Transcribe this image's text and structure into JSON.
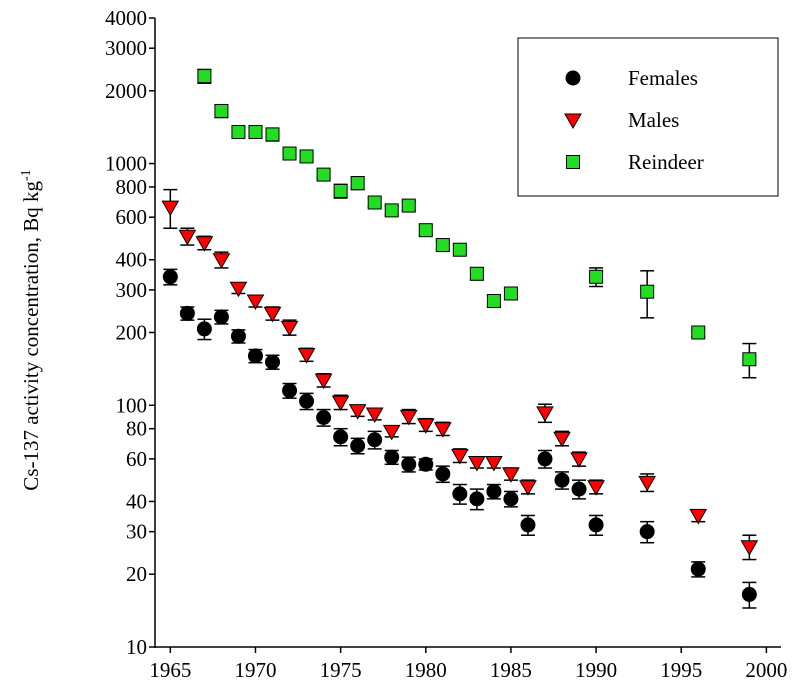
{
  "chart_data": {
    "type": "scatter",
    "y_label": "Cs-137 activity concentration, Bq kg",
    "y_label_sup": "-1",
    "xlim": [
      1964.1,
      2000.8
    ],
    "xticks": [
      1965,
      1970,
      1975,
      1980,
      1985,
      1990,
      1995,
      2000
    ],
    "ylim": [
      10,
      4000
    ],
    "yticks": [
      10,
      20,
      30,
      40,
      60,
      80,
      100,
      200,
      300,
      400,
      600,
      800,
      1000,
      2000,
      3000,
      4000
    ],
    "log_y": true,
    "legend": "top-right",
    "series": [
      {
        "name": "Females",
        "color": "#000000",
        "marker": "circle",
        "x": [
          1965,
          1966,
          1967,
          1968,
          1969,
          1970,
          1971,
          1972,
          1973,
          1974,
          1975,
          1976,
          1977,
          1978,
          1979,
          1980,
          1981,
          1982,
          1983,
          1984,
          1985,
          1986,
          1987,
          1988,
          1989,
          1990,
          1993,
          1996,
          1999
        ],
        "values": [
          340,
          240,
          207,
          232,
          193,
          160,
          151,
          115,
          104,
          89,
          74,
          68,
          72,
          61,
          57,
          57,
          52,
          43,
          41,
          44,
          41,
          32,
          60,
          49,
          45,
          32,
          30,
          21,
          16.5
        ],
        "errors": [
          25,
          15,
          20,
          15,
          12,
          10,
          10,
          8,
          8,
          7,
          6,
          5,
          6,
          4,
          4,
          3,
          4,
          4,
          4,
          3,
          3,
          3,
          5,
          4,
          4,
          3,
          3,
          1.5,
          2
        ]
      },
      {
        "name": "Males",
        "color": "#ff0000",
        "marker": "triangle-down",
        "x": [
          1965,
          1966,
          1967,
          1968,
          1969,
          1970,
          1971,
          1972,
          1973,
          1974,
          1975,
          1976,
          1977,
          1978,
          1979,
          1980,
          1981,
          1982,
          1983,
          1984,
          1985,
          1986,
          1987,
          1988,
          1989,
          1990,
          1993,
          1996,
          1999
        ],
        "values": [
          660,
          500,
          470,
          400,
          305,
          270,
          240,
          210,
          162,
          127,
          103,
          95,
          92,
          78,
          90,
          83,
          80,
          62,
          58,
          58,
          52,
          46,
          93,
          73,
          60,
          46,
          48,
          35,
          26
        ],
        "errors": [
          120,
          40,
          30,
          30,
          15,
          15,
          15,
          15,
          10,
          8,
          7,
          5,
          5,
          4,
          6,
          5,
          5,
          4,
          3,
          3,
          3,
          3,
          8,
          5,
          4,
          3,
          4,
          2,
          3
        ]
      },
      {
        "name": "Reindeer",
        "color": "#22dd22",
        "marker": "square",
        "x": [
          1967,
          1968,
          1969,
          1970,
          1971,
          1972,
          1973,
          1974,
          1975,
          1976,
          1977,
          1978,
          1979,
          1980,
          1981,
          1982,
          1983,
          1984,
          1985,
          1990,
          1993,
          1996,
          1999
        ],
        "values": [
          2300,
          1650,
          1350,
          1350,
          1320,
          1100,
          1070,
          900,
          770,
          830,
          690,
          640,
          670,
          530,
          460,
          440,
          350,
          270,
          290,
          340,
          295,
          200,
          155
        ],
        "errors": [
          150,
          100,
          60,
          60,
          80,
          50,
          50,
          40,
          50,
          50,
          30,
          30,
          30,
          25,
          20,
          20,
          20,
          15,
          15,
          30,
          65,
          8,
          25
        ]
      }
    ]
  }
}
